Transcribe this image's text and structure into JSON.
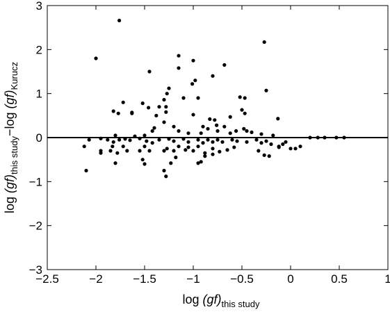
{
  "chart_data": {
    "type": "scatter",
    "xlabel": {
      "pre": "log ",
      "it": "(gf)",
      "sub": "this study"
    },
    "ylabel": {
      "p1": "log ",
      "it1": "(gf)",
      "sub1": "this study",
      "mid": "−log ",
      "it2": "(gf)",
      "sub2": "Kurucz"
    },
    "xlim": [
      -2.5,
      1
    ],
    "ylim": [
      -3,
      3
    ],
    "x_ticks": [
      -2.5,
      -2,
      -1.5,
      -1,
      -0.5,
      0,
      0.5,
      1
    ],
    "x_tick_labels": [
      "−2.5",
      "−2",
      "−1.5",
      "−1",
      "−0.5",
      "0",
      "0.5",
      "1"
    ],
    "y_ticks": [
      -3,
      -2,
      -1,
      0,
      1,
      2,
      3
    ],
    "y_tick_labels": [
      "−3",
      "−2",
      "−1",
      "0",
      "1",
      "2",
      "3"
    ],
    "reference_line_y": 0,
    "grid": false,
    "points": [
      [
        -1.76,
        2.66
      ],
      [
        -2.0,
        1.8
      ],
      [
        -1.15,
        1.86
      ],
      [
        -1.15,
        1.58
      ],
      [
        -1.0,
        1.75
      ],
      [
        -1.01,
        1.22
      ],
      [
        -0.98,
        1.3
      ],
      [
        -0.8,
        1.4
      ],
      [
        -0.68,
        1.65
      ],
      [
        -0.27,
        2.17
      ],
      [
        -0.25,
        1.07
      ],
      [
        -1.45,
        1.5
      ],
      [
        -1.27,
        1.0
      ],
      [
        -1.3,
        0.86
      ],
      [
        -1.25,
        1.12
      ],
      [
        -1.1,
        0.9
      ],
      [
        -0.95,
        0.9
      ],
      [
        -1.35,
        0.7
      ],
      [
        -1.28,
        0.7
      ],
      [
        -1.52,
        0.78
      ],
      [
        -1.63,
        0.57
      ],
      [
        -1.63,
        0.55
      ],
      [
        -1.72,
        0.8
      ],
      [
        -1.77,
        0.55
      ],
      [
        -1.82,
        0.6
      ],
      [
        -1.46,
        0.68
      ],
      [
        -1.38,
        0.5
      ],
      [
        -1.28,
        0.58
      ],
      [
        -1.0,
        0.52
      ],
      [
        -0.83,
        0.42
      ],
      [
        -0.52,
        0.92
      ],
      [
        -0.47,
        0.9
      ],
      [
        -0.5,
        0.63
      ],
      [
        -0.47,
        0.55
      ],
      [
        -0.62,
        0.47
      ],
      [
        -0.13,
        0.43
      ],
      [
        -0.9,
        0.25
      ],
      [
        -0.78,
        0.4
      ],
      [
        -0.76,
        0.28
      ],
      [
        -0.68,
        0.25
      ],
      [
        -0.56,
        0.15
      ],
      [
        -0.48,
        0.2
      ],
      [
        -1.8,
        0.05
      ],
      [
        -1.6,
        0.03
      ],
      [
        -1.5,
        0.05
      ],
      [
        -1.42,
        0.15
      ],
      [
        -1.4,
        0.22
      ],
      [
        -1.3,
        0.35
      ],
      [
        -1.2,
        0.25
      ],
      [
        -1.15,
        0.15
      ],
      [
        -1.05,
        0.1
      ],
      [
        -0.92,
        0.1
      ],
      [
        -0.85,
        0.2
      ],
      [
        -0.75,
        0.15
      ],
      [
        -0.62,
        0.1
      ],
      [
        -0.45,
        0.15
      ],
      [
        -0.4,
        0.12
      ],
      [
        -0.3,
        0.08
      ],
      [
        -0.18,
        0.05
      ],
      [
        -2.07,
        -0.05
      ],
      [
        -1.95,
        -0.02
      ],
      [
        -1.88,
        -0.05
      ],
      [
        -1.82,
        -0.1
      ],
      [
        -1.76,
        -0.05
      ],
      [
        -1.7,
        -0.03
      ],
      [
        -1.65,
        -0.06
      ],
      [
        -1.55,
        -0.02
      ],
      [
        -1.48,
        -0.08
      ],
      [
        -1.42,
        -0.12
      ],
      [
        -1.35,
        -0.05
      ],
      [
        -1.25,
        -0.03
      ],
      [
        -1.2,
        -0.08
      ],
      [
        -1.1,
        -0.03
      ],
      [
        -1.05,
        -0.1
      ],
      [
        -0.95,
        -0.05
      ],
      [
        -0.9,
        -0.12
      ],
      [
        -0.85,
        -0.05
      ],
      [
        -0.8,
        -0.1
      ],
      [
        -0.75,
        -0.05
      ],
      [
        -0.7,
        -0.1
      ],
      [
        -0.6,
        -0.05
      ],
      [
        -0.55,
        -0.08
      ],
      [
        -0.45,
        -0.1
      ],
      [
        -0.35,
        -0.05
      ],
      [
        -0.3,
        -0.12
      ],
      [
        -0.25,
        -0.08
      ],
      [
        -0.2,
        -0.15
      ],
      [
        -0.12,
        -0.2
      ],
      [
        -0.05,
        -0.1
      ],
      [
        0.0,
        -0.25
      ],
      [
        0.05,
        -0.25
      ],
      [
        0.1,
        -0.2
      ],
      [
        0.2,
        0.0
      ],
      [
        0.28,
        0.0
      ],
      [
        0.35,
        0.0
      ],
      [
        0.47,
        0.0
      ],
      [
        0.55,
        0.0
      ],
      [
        -2.12,
        -0.2
      ],
      [
        -1.95,
        -0.3
      ],
      [
        -1.95,
        -0.35
      ],
      [
        -1.85,
        -0.3
      ],
      [
        -1.83,
        -0.2
      ],
      [
        -1.78,
        -0.35
      ],
      [
        -1.72,
        -0.2
      ],
      [
        -1.68,
        -0.3
      ],
      [
        -1.55,
        -0.3
      ],
      [
        -1.5,
        -0.2
      ],
      [
        -1.45,
        -0.3
      ],
      [
        -1.3,
        -0.3
      ],
      [
        -1.27,
        -0.25
      ],
      [
        -1.2,
        -0.3
      ],
      [
        -1.15,
        -0.2
      ],
      [
        -1.08,
        -0.28
      ],
      [
        -1.05,
        -0.22
      ],
      [
        -1.0,
        -0.3
      ],
      [
        -0.95,
        -0.2
      ],
      [
        -0.88,
        -0.35
      ],
      [
        -0.8,
        -0.25
      ],
      [
        -0.73,
        -0.32
      ],
      [
        -0.65,
        -0.28
      ],
      [
        -0.58,
        -0.22
      ],
      [
        -0.33,
        -0.3
      ],
      [
        -0.27,
        -0.4
      ],
      [
        -0.22,
        -0.42
      ],
      [
        -0.12,
        -0.22
      ],
      [
        -0.08,
        -0.15
      ],
      [
        -2.1,
        -0.75
      ],
      [
        -1.8,
        -0.58
      ],
      [
        -1.52,
        -0.5
      ],
      [
        -1.5,
        -0.6
      ],
      [
        -1.3,
        -0.75
      ],
      [
        -1.28,
        -0.88
      ],
      [
        -1.23,
        -0.58
      ],
      [
        -1.18,
        -0.45
      ],
      [
        -0.95,
        -0.58
      ],
      [
        -0.92,
        -0.55
      ],
      [
        -0.88,
        -0.42
      ],
      [
        -0.8,
        -0.38
      ]
    ]
  }
}
